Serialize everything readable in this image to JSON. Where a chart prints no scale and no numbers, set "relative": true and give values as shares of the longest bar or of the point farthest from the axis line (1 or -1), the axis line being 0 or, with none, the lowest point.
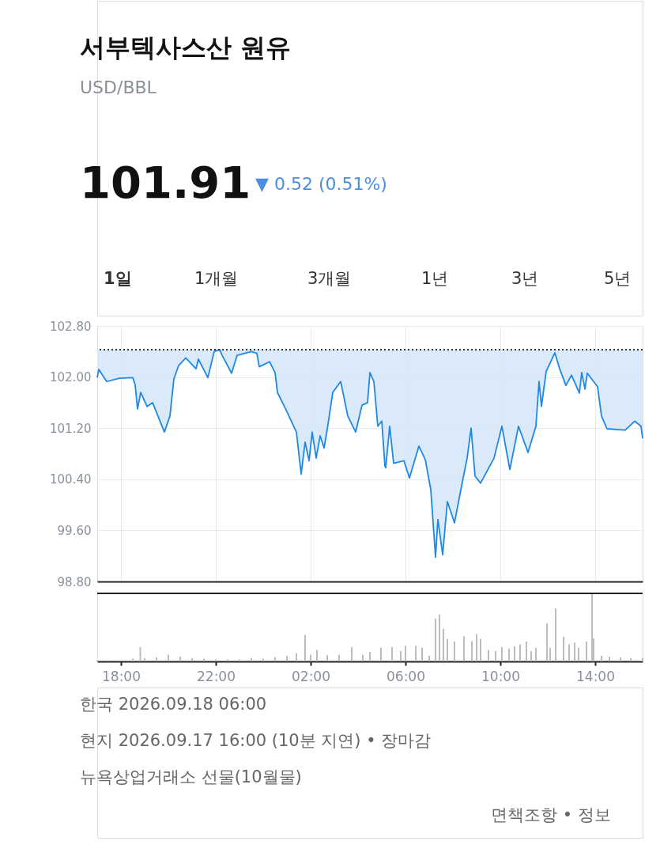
{
  "chart_data": [
    {
      "type": "line",
      "title": "서부텍사스산 원유",
      "subtitle": "USD/BBL",
      "annotations": [
        "101.91",
        "▼ 0.52 (0.51%)",
        "1일",
        "1개월",
        "3개월",
        "1년",
        "3년",
        "5년"
      ],
      "series": [
        {
          "color": "#1e88e5",
          "x": [
            "2026-09-16T17:00",
            "2026-09-16T17:04",
            "2026-09-16T17:24",
            "2026-09-16T17:56",
            "2026-09-16T18:30",
            "2026-09-16T18:36",
            "2026-09-16T18:42",
            "2026-09-16T18:50",
            "2026-09-16T19:06",
            "2026-09-16T19:20",
            "2026-09-16T19:50",
            "2026-09-16T20:04",
            "2026-09-16T20:14",
            "2026-09-16T20:26",
            "2026-09-16T20:44",
            "2026-09-16T21:10",
            "2026-09-16T21:16",
            "2026-09-16T21:40",
            "2026-09-16T21:56",
            "2026-09-16T22:10",
            "2026-09-16T22:16",
            "2026-09-16T22:40",
            "2026-09-16T22:54",
            "2026-09-16T23:30",
            "2026-09-16T23:44",
            "2026-09-16T23:50",
            "2026-09-17T00:16",
            "2026-09-17T00:30",
            "2026-09-17T00:36",
            "2026-09-17T00:56",
            "2026-09-17T01:24",
            "2026-09-17T01:36",
            "2026-09-17T01:46",
            "2026-09-17T01:56",
            "2026-09-17T02:04",
            "2026-09-17T02:14",
            "2026-09-17T02:24",
            "2026-09-17T02:34",
            "2026-09-17T02:44",
            "2026-09-17T02:56",
            "2026-09-17T03:16",
            "2026-09-17T03:34",
            "2026-09-17T03:54",
            "2026-09-17T04:10",
            "2026-09-17T04:24",
            "2026-09-17T04:30",
            "2026-09-17T04:40",
            "2026-09-17T04:50",
            "2026-09-17T05:00",
            "2026-09-17T05:08",
            "2026-09-17T05:10",
            "2026-09-17T05:20",
            "2026-09-17T05:30",
            "2026-09-17T05:56",
            "2026-09-17T06:10",
            "2026-09-17T06:34",
            "2026-09-17T06:50",
            "2026-09-17T07:04",
            "2026-09-17T07:16",
            "2026-09-17T07:22",
            "2026-09-17T07:34",
            "2026-09-17T07:46",
            "2026-09-17T08:04",
            "2026-09-17T08:24",
            "2026-09-17T08:36",
            "2026-09-17T08:46",
            "2026-09-17T08:56",
            "2026-09-17T09:10",
            "2026-09-17T09:44",
            "2026-09-17T10:04",
            "2026-09-17T10:24",
            "2026-09-17T10:46",
            "2026-09-17T11:10",
            "2026-09-17T11:30",
            "2026-09-17T11:38",
            "2026-09-17T11:44",
            "2026-09-17T11:56",
            "2026-09-17T12:18",
            "2026-09-17T12:30",
            "2026-09-17T12:46",
            "2026-09-17T13:00",
            "2026-09-17T13:20",
            "2026-09-17T13:26",
            "2026-09-17T13:34",
            "2026-09-17T13:40",
            "2026-09-17T14:06",
            "2026-09-17T14:16",
            "2026-09-17T14:30",
            "2026-09-17T15:16",
            "2026-09-17T15:40",
            "2026-09-17T15:56",
            "2026-09-17T16:00"
          ],
          "values": [
            101.99,
            102.12,
            101.93,
            101.98,
            101.99,
            101.88,
            101.5,
            101.76,
            101.54,
            101.6,
            101.14,
            101.39,
            101.97,
            102.18,
            102.3,
            102.13,
            102.28,
            101.99,
            102.4,
            102.43,
            102.34,
            102.06,
            102.34,
            102.4,
            102.37,
            102.16,
            102.24,
            102.07,
            101.76,
            101.51,
            101.14,
            100.48,
            100.98,
            100.69,
            101.14,
            100.73,
            101.08,
            100.89,
            101.26,
            101.76,
            101.93,
            101.39,
            101.14,
            101.56,
            101.6,
            102.07,
            101.93,
            101.23,
            101.31,
            100.61,
            100.58,
            101.23,
            100.65,
            100.69,
            100.42,
            100.92,
            100.71,
            100.24,
            99.18,
            99.77,
            99.22,
            100.05,
            99.72,
            100.36,
            100.73,
            101.2,
            100.45,
            100.34,
            100.73,
            101.23,
            100.55,
            101.23,
            100.82,
            101.23,
            101.93,
            101.54,
            102.09,
            102.38,
            102.13,
            101.87,
            102.03,
            101.75,
            102.07,
            101.81,
            102.06,
            101.85,
            101.39,
            101.19,
            101.17,
            101.31,
            101.23,
            101.04
          ],
          "lower": [
            101.99,
            102.12,
            101.93,
            101.98,
            101.99,
            101.88,
            101.5,
            101.76,
            101.54,
            101.6,
            101.14,
            101.39,
            101.97,
            102.18,
            102.3,
            102.13,
            102.28,
            101.99,
            102.4,
            102.43,
            102.34,
            102.06,
            102.34,
            102.4,
            102.37,
            102.16,
            102.24,
            102.07,
            101.76,
            101.51,
            101.14,
            100.48,
            100.98,
            100.69,
            101.14,
            100.73,
            101.08,
            100.89,
            101.26,
            101.76,
            101.93,
            101.39,
            101.14,
            101.56,
            101.6,
            102.07,
            101.93,
            101.23,
            101.31,
            100.61,
            100.58,
            101.23,
            100.65,
            100.69,
            100.42,
            100.92,
            100.71,
            100.24,
            99.18,
            99.77,
            99.22,
            100.05,
            99.72,
            100.36,
            100.73,
            101.2,
            100.45,
            100.34,
            100.73,
            101.23,
            100.55,
            101.23,
            100.82,
            101.23,
            101.93,
            101.54,
            102.09,
            102.38,
            102.13,
            101.87,
            102.03,
            101.75,
            102.07,
            101.81,
            102.06,
            101.85,
            101.39,
            101.19,
            101.17,
            101.31,
            101.23,
            101.04
          ],
          "upper": [
            102.43,
            102.43,
            102.43,
            102.43,
            102.43,
            102.43,
            102.43,
            102.43,
            102.43,
            102.43,
            102.43,
            102.43,
            102.43,
            102.43,
            102.43,
            102.43,
            102.43,
            102.43,
            102.43,
            102.43,
            102.43,
            102.43,
            102.43,
            102.43,
            102.43,
            102.43,
            102.43,
            102.43,
            102.43,
            102.43,
            102.43,
            102.43,
            102.43,
            102.43,
            102.43,
            102.43,
            102.43,
            102.43,
            102.43,
            102.43,
            102.43,
            102.43,
            102.43,
            102.43,
            102.43,
            102.43,
            102.43,
            102.43,
            102.43,
            102.43,
            102.43,
            102.43,
            102.43,
            102.43,
            102.43,
            102.43,
            102.43,
            102.43,
            102.43,
            102.43,
            102.43,
            102.43,
            102.43,
            102.43,
            102.43,
            102.43,
            102.43,
            102.43,
            102.43,
            102.43,
            102.43,
            102.43,
            102.43,
            102.43,
            102.43,
            102.43,
            102.43,
            102.43,
            102.43,
            102.43,
            102.43,
            102.43,
            102.43,
            102.43,
            102.43,
            102.43,
            102.43,
            102.43,
            102.43,
            102.43,
            102.43,
            102.43
          ]
        }
      ],
      "xlim": [
        "2026-09-16T17:00",
        "2026-09-17T16:00"
      ],
      "xticks": [
        {
          "value": "2026-09-16T18:00",
          "label": null
        },
        {
          "value": "2026-09-16T22:00",
          "label": null
        },
        {
          "value": "2026-09-17T02:00",
          "label": null
        },
        {
          "value": "2026-09-17T06:00",
          "label": null
        },
        {
          "value": "2026-09-17T10:00",
          "label": null
        },
        {
          "value": "2026-09-17T14:00",
          "label": null
        }
      ],
      "ylim": [
        98.8,
        102.8
      ],
      "yticks": [
        {
          "value": 98.8,
          "label": "98.80"
        },
        {
          "value": 99.6,
          "label": "99.60"
        },
        {
          "value": 100.4,
          "label": "100.40"
        },
        {
          "value": 101.2,
          "label": "101.20"
        },
        {
          "value": 102.0,
          "label": "102.00"
        },
        {
          "value": 102.8,
          "label": "102.80"
        }
      ],
      "ref_lines": [
        {
          "axis": "y",
          "value": 102.43,
          "color": "#333333",
          "line_style": "dotted"
        }
      ],
      "grid": true,
      "tick_labels": "y"
    },
    {
      "type": "bar",
      "relative": true,
      "annotations": [
        "한국 2026.09.18 06:00",
        "현지 2026.09.17 16:00 (10분 지연) • 장마감",
        "뉴욕상업거래소 선물(10월물)",
        "면책조항 • 정보"
      ],
      "x": [
        "2026-09-16T17:00",
        "2026-09-16T17:30",
        "2026-09-16T18:30",
        "2026-09-16T18:49",
        "2026-09-16T19:00",
        "2026-09-16T19:30",
        "2026-09-16T20:00",
        "2026-09-16T20:30",
        "2026-09-16T21:00",
        "2026-09-16T21:30",
        "2026-09-16T22:00",
        "2026-09-16T22:30",
        "2026-09-16T23:00",
        "2026-09-16T23:30",
        "2026-09-17T00:00",
        "2026-09-17T00:30",
        "2026-09-17T01:00",
        "2026-09-17T01:24",
        "2026-09-17T01:46",
        "2026-09-17T02:00",
        "2026-09-17T02:16",
        "2026-09-17T02:42",
        "2026-09-17T03:12",
        "2026-09-17T03:44",
        "2026-09-17T04:12",
        "2026-09-17T04:30",
        "2026-09-17T04:58",
        "2026-09-17T05:26",
        "2026-09-17T05:48",
        "2026-09-17T06:00",
        "2026-09-17T06:26",
        "2026-09-17T06:42",
        "2026-09-17T07:00",
        "2026-09-17T07:16",
        "2026-09-17T07:26",
        "2026-09-17T07:36",
        "2026-09-17T07:46",
        "2026-09-17T08:04",
        "2026-09-17T08:28",
        "2026-09-17T08:48",
        "2026-09-17T09:00",
        "2026-09-17T09:10",
        "2026-09-17T09:30",
        "2026-09-17T09:48",
        "2026-09-17T10:04",
        "2026-09-17T10:22",
        "2026-09-17T10:36",
        "2026-09-17T10:50",
        "2026-09-17T11:06",
        "2026-09-17T11:18",
        "2026-09-17T11:30",
        "2026-09-17T11:58",
        "2026-09-17T12:06",
        "2026-09-17T12:20",
        "2026-09-17T12:40",
        "2026-09-17T12:54",
        "2026-09-17T13:08",
        "2026-09-17T13:18",
        "2026-09-17T13:38",
        "2026-09-17T13:52",
        "2026-09-17T13:56",
        "2026-09-17T14:16",
        "2026-09-17T14:36",
        "2026-09-17T15:04",
        "2026-09-17T15:30",
        "2026-09-17T16:00"
      ],
      "series": [
        {
          "color": "#bdbdbd",
          "values": [
            0.02,
            0.02,
            0.04,
            0.21,
            0.05,
            0.06,
            0.1,
            0.07,
            0.05,
            0.04,
            0.03,
            0.03,
            0.03,
            0.05,
            0.04,
            0.06,
            0.08,
            0.12,
            0.39,
            0.1,
            0.17,
            0.09,
            0.1,
            0.21,
            0.1,
            0.14,
            0.2,
            0.21,
            0.15,
            0.23,
            0.23,
            0.2,
            0.08,
            0.63,
            0.69,
            0.48,
            0.33,
            0.29,
            0.37,
            0.3,
            0.4,
            0.33,
            0.17,
            0.15,
            0.21,
            0.19,
            0.22,
            0.25,
            0.29,
            0.15,
            0.2,
            0.56,
            0.2,
            0.78,
            0.36,
            0.25,
            0.28,
            0.2,
            0.29,
            1.0,
            0.34,
            0.08,
            0.07,
            0.06,
            0.05,
            0.05
          ]
        }
      ],
      "xlim": [
        "2026-09-16T17:00",
        "2026-09-17T16:00"
      ],
      "xticks": [
        {
          "value": "2026-09-16T18:00",
          "label": "18:00"
        },
        {
          "value": "2026-09-16T22:00",
          "label": "22:00"
        },
        {
          "value": "2026-09-17T02:00",
          "label": "02:00"
        },
        {
          "value": "2026-09-17T06:00",
          "label": "06:00"
        },
        {
          "value": "2026-09-17T10:00",
          "label": "10:00"
        },
        {
          "value": "2026-09-17T14:00",
          "label": "14:00"
        }
      ],
      "tick_labels": "x"
    }
  ]
}
